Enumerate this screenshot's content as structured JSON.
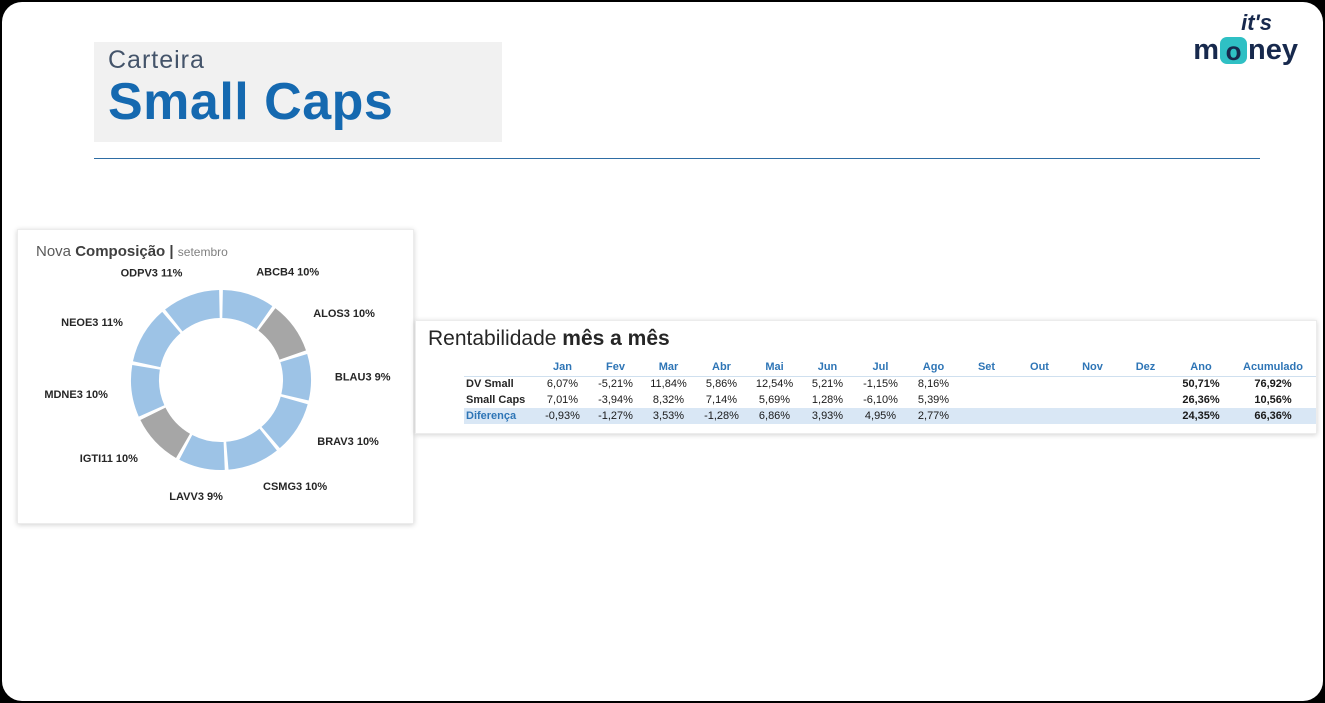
{
  "theme": {
    "accent": "#1569b0",
    "table_header": "#2e75b6",
    "highlight": "#d9e7f5",
    "teal": "#2fc0c4",
    "navy": "#17294d",
    "slice_blue": "#9dc3e6",
    "slice_gray": "#a6a6a6"
  },
  "brand": {
    "line1": "it's",
    "m": "m",
    "o": "o",
    "ney": "ney"
  },
  "header": {
    "kicker": "Carteira",
    "title": "Small Caps"
  },
  "composition": {
    "word1": "Nova",
    "word2": "Composição",
    "sep": "|",
    "subtitle": "setembro"
  },
  "performance": {
    "title_regular": "Rentabilidade",
    "title_bold": "mês a mês"
  },
  "chart_data": [
    {
      "type": "pie",
      "subtype": "donut",
      "title": "Nova Composição | setembro",
      "categories": [
        "ABCB4",
        "ALOS3",
        "BLAU3",
        "BRAV3",
        "CSMG3",
        "LAVV3",
        "IGTI11",
        "MDNE3",
        "NEOE3",
        "ODPV3"
      ],
      "values": [
        10,
        10,
        9,
        10,
        10,
        9,
        10,
        10,
        11,
        11
      ],
      "labels": [
        "ABCB4 10%",
        "ALOS3 10%",
        "BLAU3 9%",
        "BRAV3 10%",
        "CSMG3 10%",
        "LAVV3 9%",
        "IGTI11 10%",
        "MDNE3 10%",
        "NEOE3 11%",
        "ODPV3 11%"
      ],
      "colors": [
        "#9dc3e6",
        "#a6a6a6",
        "#9dc3e6",
        "#9dc3e6",
        "#9dc3e6",
        "#9dc3e6",
        "#a6a6a6",
        "#9dc3e6",
        "#9dc3e6",
        "#9dc3e6"
      ],
      "start_angle": 0,
      "clockwise": true,
      "slice_gap_deg": 2.4,
      "legend_position": "outside-labels"
    },
    {
      "type": "table",
      "title": "Rentabilidade mês a mês",
      "columns": [
        "Jan",
        "Fev",
        "Mar",
        "Abr",
        "Mai",
        "Jun",
        "Jul",
        "Ago",
        "Set",
        "Out",
        "Nov",
        "Dez",
        "Ano",
        "Acumulado"
      ],
      "rows": [
        {
          "label": "DV Small",
          "values": [
            "6,07%",
            "-5,21%",
            "11,84%",
            "5,86%",
            "12,54%",
            "5,21%",
            "-1,15%",
            "8,16%",
            "",
            "",
            "",
            "",
            "50,71%",
            "76,92%"
          ],
          "highlight": false
        },
        {
          "label": "Small Caps",
          "values": [
            "7,01%",
            "-3,94%",
            "8,32%",
            "7,14%",
            "5,69%",
            "1,28%",
            "-6,10%",
            "5,39%",
            "",
            "",
            "",
            "",
            "26,36%",
            "10,56%"
          ],
          "highlight": false
        },
        {
          "label": "Diferença",
          "values": [
            "-0,93%",
            "-1,27%",
            "3,53%",
            "-1,28%",
            "6,86%",
            "3,93%",
            "4,95%",
            "2,77%",
            "",
            "",
            "",
            "",
            "24,35%",
            "66,36%"
          ],
          "highlight": true
        }
      ]
    }
  ]
}
